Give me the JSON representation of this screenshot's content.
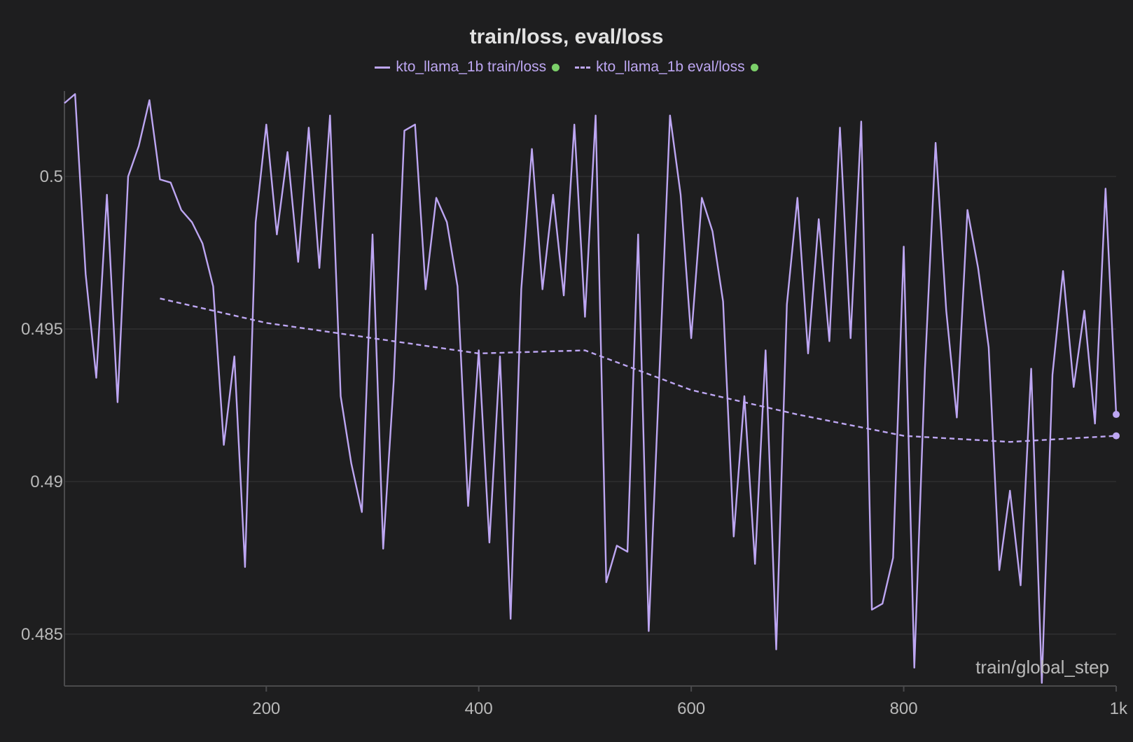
{
  "chart_data": {
    "type": "line",
    "title": "train/loss, eval/loss",
    "xlabel": "train/global_step",
    "ylabel": "",
    "xlim": [
      10,
      1000
    ],
    "ylim": [
      0.4833,
      0.5028
    ],
    "x_ticks": [
      200,
      400,
      600,
      800,
      1000
    ],
    "x_tick_labels": [
      "200",
      "400",
      "600",
      "800",
      "1k"
    ],
    "y_ticks": [
      0.485,
      0.49,
      0.495,
      0.5
    ],
    "y_tick_labels": [
      "0.485",
      "0.49",
      "0.495",
      "0.5"
    ],
    "grid": true,
    "legend_position": "top-center",
    "colors": {
      "series": "#bda6f2",
      "status_dot": "#7cd06a",
      "background": "#1e1e1f"
    },
    "series": [
      {
        "name": "kto_llama_1b train/loss",
        "style": "solid",
        "x": [
          10,
          20,
          30,
          40,
          50,
          60,
          70,
          80,
          90,
          100,
          110,
          120,
          130,
          140,
          150,
          160,
          170,
          180,
          190,
          200,
          210,
          220,
          230,
          240,
          250,
          260,
          270,
          280,
          290,
          300,
          310,
          320,
          330,
          340,
          350,
          360,
          370,
          380,
          390,
          400,
          410,
          420,
          430,
          440,
          450,
          460,
          470,
          480,
          490,
          500,
          510,
          520,
          530,
          540,
          550,
          560,
          570,
          580,
          590,
          600,
          610,
          620,
          630,
          640,
          650,
          660,
          670,
          680,
          690,
          700,
          710,
          720,
          730,
          740,
          750,
          760,
          770,
          780,
          790,
          800,
          810,
          820,
          830,
          840,
          850,
          860,
          870,
          880,
          890,
          900,
          910,
          920,
          930,
          940,
          950,
          960,
          970,
          980,
          990,
          1000
        ],
        "y": [
          0.5024,
          0.5027,
          0.4968,
          0.4934,
          0.4994,
          0.4926,
          0.5,
          0.501,
          0.5025,
          0.4999,
          0.4998,
          0.4989,
          0.4985,
          0.4978,
          0.4964,
          0.4912,
          0.4941,
          0.4872,
          0.4985,
          0.5017,
          0.4981,
          0.5008,
          0.4972,
          0.5016,
          0.497,
          0.502,
          0.4928,
          0.4906,
          0.489,
          0.4981,
          0.4878,
          0.4933,
          0.5015,
          0.5017,
          0.4963,
          0.4993,
          0.4985,
          0.4964,
          0.4892,
          0.4943,
          0.488,
          0.4941,
          0.4855,
          0.4963,
          0.5009,
          0.4963,
          0.4994,
          0.4961,
          0.5017,
          0.4954,
          0.502,
          0.4867,
          0.4879,
          0.4877,
          0.4981,
          0.4851,
          0.4935,
          0.502,
          0.4994,
          0.4947,
          0.4993,
          0.4982,
          0.4959,
          0.4882,
          0.4928,
          0.4873,
          0.4943,
          0.4845,
          0.4958,
          0.4993,
          0.4942,
          0.4986,
          0.4946,
          0.5016,
          0.4947,
          0.5018,
          0.4858,
          0.486,
          0.4875,
          0.4977,
          0.4839,
          0.4937,
          0.5011,
          0.4956,
          0.4921,
          0.4989,
          0.497,
          0.4944,
          0.4871,
          0.4897,
          0.4866,
          0.4937,
          0.4834,
          0.4935,
          0.4969,
          0.4931,
          0.4956,
          0.4919,
          0.4996,
          0.4922
        ]
      },
      {
        "name": "kto_llama_1b eval/loss",
        "style": "dashed",
        "x": [
          100,
          200,
          300,
          400,
          500,
          600,
          700,
          800,
          900,
          1000
        ],
        "y": [
          0.496,
          0.4952,
          0.4947,
          0.4942,
          0.4943,
          0.493,
          0.4922,
          0.4915,
          0.4913,
          0.4915
        ]
      }
    ]
  }
}
